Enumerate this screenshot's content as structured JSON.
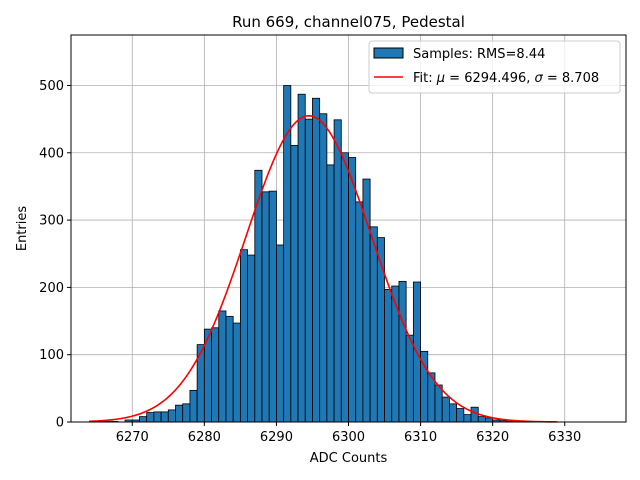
{
  "chart_data": {
    "type": "bar",
    "title": "Run 669, channel075, Pedestal",
    "xlabel": "ADC Counts",
    "ylabel": "Entries",
    "xlim": [
      6261.5,
      6338.5
    ],
    "ylim": [
      0,
      575
    ],
    "xticks": [
      6270,
      6280,
      6290,
      6300,
      6310,
      6320,
      6330
    ],
    "yticks": [
      0,
      100,
      200,
      300,
      400,
      500
    ],
    "grid": true,
    "legend_position": "top-right",
    "histogram": {
      "name": "Samples: RMS=8.44",
      "color": "#1f77b4",
      "edgecolor": "#000000",
      "bins": [
        6266,
        6267,
        6268,
        6269,
        6270,
        6271,
        6272,
        6273,
        6274,
        6275,
        6276,
        6277,
        6278,
        6279,
        6280,
        6281,
        6282,
        6283,
        6284,
        6285,
        6286,
        6287,
        6288,
        6289,
        6290,
        6291,
        6292,
        6293,
        6294,
        6295,
        6296,
        6297,
        6298,
        6299,
        6300,
        6301,
        6302,
        6303,
        6304,
        6305,
        6306,
        6307,
        6308,
        6309,
        6310,
        6311,
        6312,
        6313,
        6314,
        6315,
        6316,
        6317,
        6318,
        6319,
        6320,
        6321,
        6322,
        6323
      ],
      "counts": [
        1,
        1,
        0,
        3,
        3,
        8,
        14,
        15,
        15,
        18,
        25,
        27,
        47,
        115,
        138,
        140,
        165,
        157,
        147,
        256,
        248,
        374,
        342,
        343,
        263,
        500,
        411,
        487,
        450,
        481,
        458,
        382,
        449,
        400,
        393,
        327,
        361,
        290,
        274,
        197,
        202,
        209,
        129,
        208,
        105,
        73,
        55,
        37,
        27,
        20,
        11,
        22,
        8,
        6,
        3,
        2,
        1,
        1
      ]
    },
    "fit": {
      "name_prefix": "Fit: ",
      "name_mu": "μ",
      "name_mid": " = 6294.496, ",
      "name_sigma": "σ",
      "name_suffix": " = 8.708",
      "color": "#ff0000",
      "mu": 6294.496,
      "sigma": 8.708,
      "amplitude": 455,
      "range": [
        6264,
        6329
      ]
    }
  }
}
